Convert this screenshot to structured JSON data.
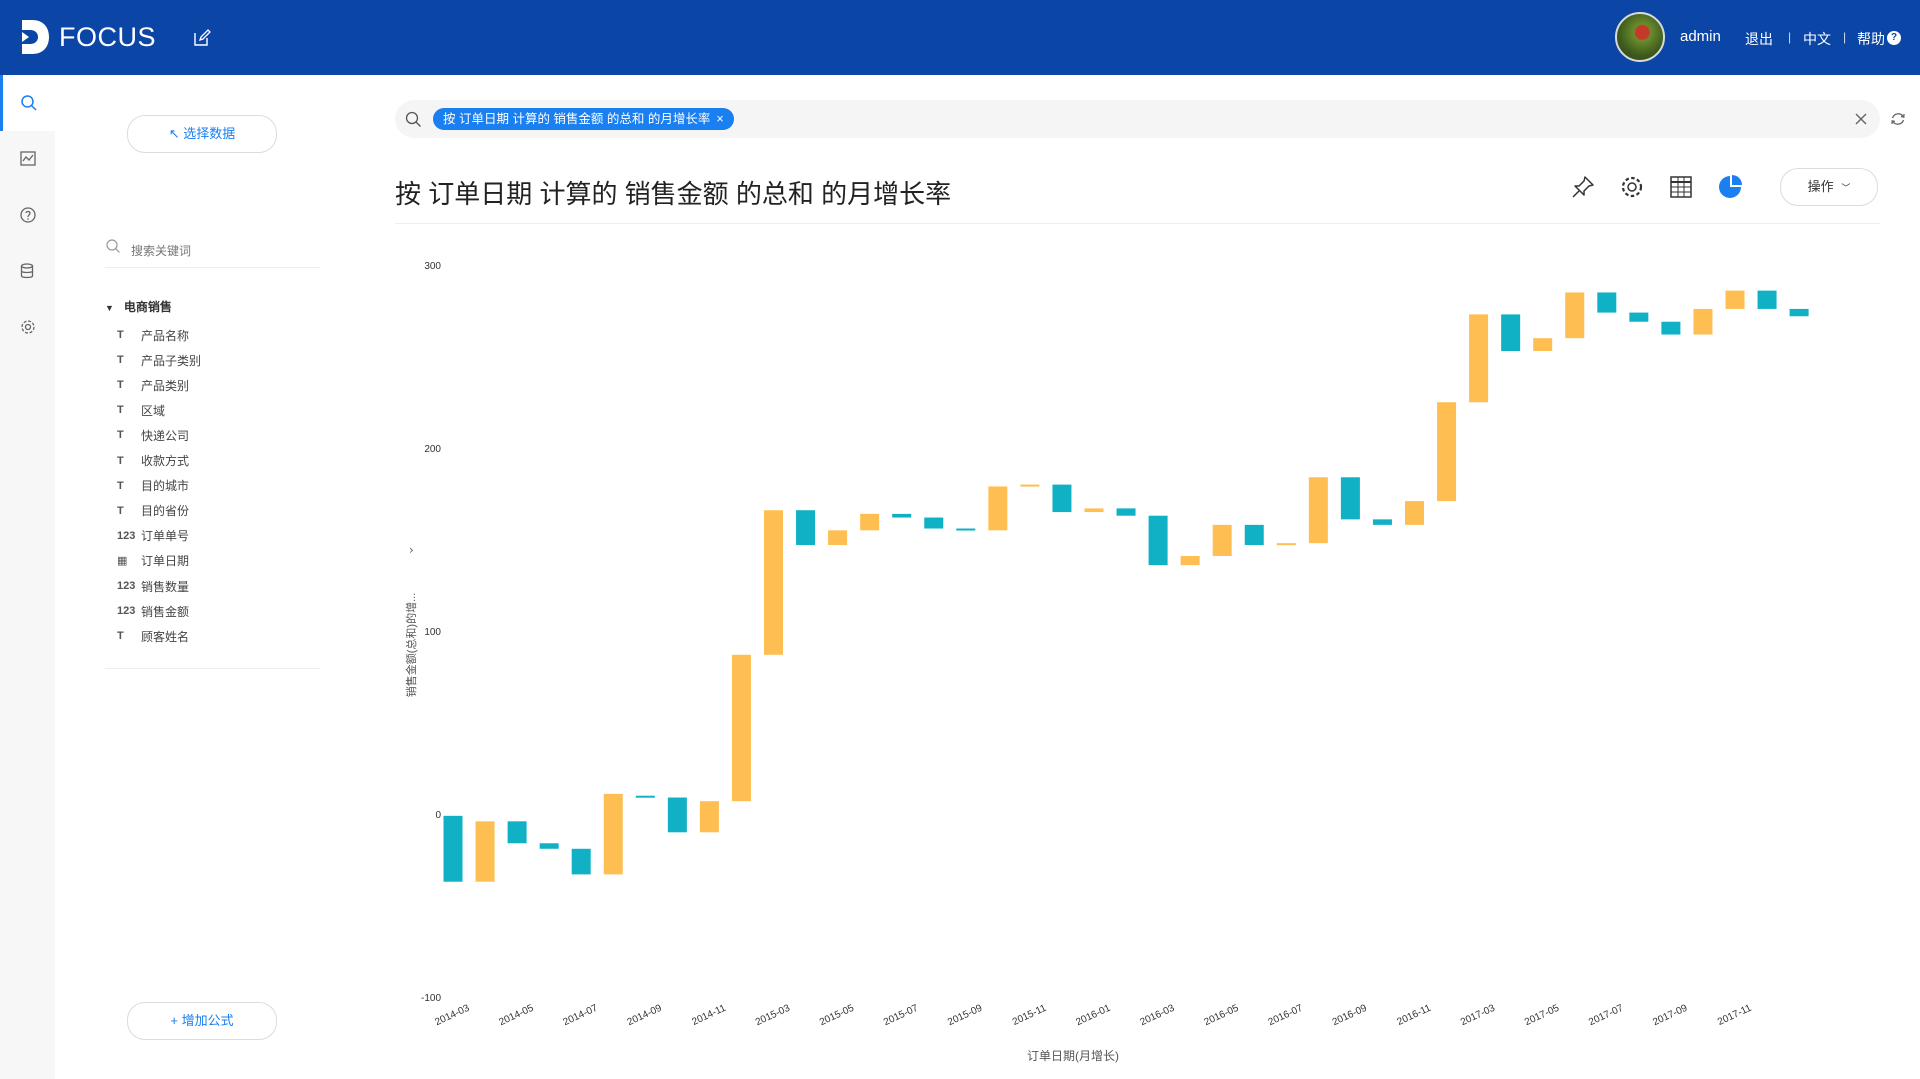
{
  "header": {
    "logo_text": "FOCUS",
    "user": "admin",
    "links": {
      "logout": "退出",
      "language": "中文",
      "help": "帮助"
    },
    "help_glyph": "?",
    "separator": "|"
  },
  "panel": {
    "select_data_label": "↖ 选择数据",
    "keyword_placeholder": "搜索关键词",
    "table_name": "电商销售",
    "fields": [
      {
        "type": "text",
        "label": "产品名称"
      },
      {
        "type": "text",
        "label": "产品子类别"
      },
      {
        "type": "text",
        "label": "产品类别"
      },
      {
        "type": "text",
        "label": "区域"
      },
      {
        "type": "text",
        "label": "快递公司"
      },
      {
        "type": "text",
        "label": "收款方式"
      },
      {
        "type": "text",
        "label": "目的城市"
      },
      {
        "type": "text",
        "label": "目的省份"
      },
      {
        "type": "number",
        "label": "订单单号"
      },
      {
        "type": "date",
        "label": "订单日期"
      },
      {
        "type": "number",
        "label": "销售数量"
      },
      {
        "type": "number",
        "label": "销售金额"
      },
      {
        "type": "text",
        "label": "顾客姓名"
      }
    ],
    "type_glyphs": {
      "text": "T",
      "number": "123",
      "date": "▦"
    },
    "add_formula_label": "+ 增加公式"
  },
  "search": {
    "token_label": "按 订单日期 计算的 销售金额 的总和 的月增长率",
    "token_close": "×"
  },
  "main": {
    "title": "按 订单日期 计算的 销售金额 的总和 的月增长率",
    "operations_label": "操作"
  },
  "colors": {
    "up": "#ffbe51",
    "down": "#10b1c5",
    "accent": "#1a7ff1",
    "header_bg": "#0b46a6"
  },
  "chart_data": {
    "type": "bar",
    "subtype": "waterfall",
    "xlabel": "订单日期(月增长)",
    "ylabel": "销售金额(总和)的增...",
    "ylim": [
      -100,
      300
    ],
    "yticks": [
      300,
      200,
      100,
      0,
      -100
    ],
    "x_tick_labels": [
      "2014-03",
      "2014-05",
      "2014-07",
      "2014-09",
      "2014-11",
      "2015-03",
      "2015-05",
      "2015-07",
      "2015-09",
      "2015-11",
      "2016-01",
      "2016-03",
      "2016-05",
      "2016-07",
      "2016-09",
      "2016-11",
      "2017-03",
      "2017-05",
      "2017-07",
      "2017-09",
      "2017-11"
    ],
    "bars": [
      {
        "start": -1,
        "end": -37
      },
      {
        "start": -37,
        "end": -4
      },
      {
        "start": -4,
        "end": -16
      },
      {
        "start": -16,
        "end": -19
      },
      {
        "start": -19,
        "end": -33
      },
      {
        "start": -33,
        "end": 11
      },
      {
        "start": 10,
        "end": 9
      },
      {
        "start": 9,
        "end": -10
      },
      {
        "start": -10,
        "end": 7
      },
      {
        "start": 7,
        "end": 87
      },
      {
        "start": 87,
        "end": 166
      },
      {
        "start": 166,
        "end": 147
      },
      {
        "start": 147,
        "end": 155
      },
      {
        "start": 155,
        "end": 164
      },
      {
        "start": 164,
        "end": 162
      },
      {
        "start": 162,
        "end": 156
      },
      {
        "start": 156,
        "end": 155
      },
      {
        "start": 155,
        "end": 179
      },
      {
        "start": 179,
        "end": 180
      },
      {
        "start": 180,
        "end": 165
      },
      {
        "start": 165,
        "end": 167
      },
      {
        "start": 167,
        "end": 163
      },
      {
        "start": 163,
        "end": 136
      },
      {
        "start": 136,
        "end": 141
      },
      {
        "start": 141,
        "end": 158
      },
      {
        "start": 158,
        "end": 147
      },
      {
        "start": 147,
        "end": 148
      },
      {
        "start": 148,
        "end": 184
      },
      {
        "start": 184,
        "end": 161
      },
      {
        "start": 161,
        "end": 158
      },
      {
        "start": 158,
        "end": 171
      },
      {
        "start": 171,
        "end": 225
      },
      {
        "start": 225,
        "end": 273
      },
      {
        "start": 273,
        "end": 253
      },
      {
        "start": 253,
        "end": 260
      },
      {
        "start": 260,
        "end": 285
      },
      {
        "start": 285,
        "end": 274
      },
      {
        "start": 274,
        "end": 269
      },
      {
        "start": 269,
        "end": 262
      },
      {
        "start": 262,
        "end": 276
      },
      {
        "start": 276,
        "end": 286
      },
      {
        "start": 286,
        "end": 276
      },
      {
        "start": 276,
        "end": 272
      }
    ]
  }
}
